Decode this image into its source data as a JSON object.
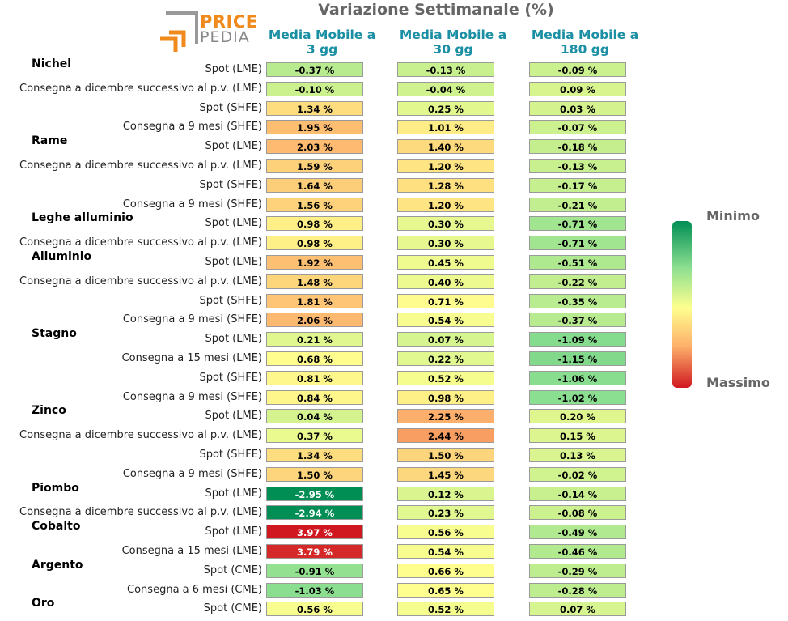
{
  "header": {
    "title": "Variazione Settimanale (%)"
  },
  "logo": {
    "top": "PRICE",
    "bottom": "PEDIA"
  },
  "legend": {
    "min_label": "Minimo",
    "max_label": "Massimo"
  },
  "chart_data": {
    "type": "table",
    "title": "Variazione Settimanale (%)",
    "columns": [
      "Media Mobile a 3 gg",
      "Media Mobile a 30 gg",
      "Media Mobile a 180 gg"
    ],
    "column_lines": [
      [
        "Media Mobile a",
        "3 gg"
      ],
      [
        "Media Mobile a",
        "30 gg"
      ],
      [
        "Media Mobile a",
        "180 gg"
      ]
    ],
    "groups": [
      {
        "name": "Nichel",
        "rows": [
          {
            "label": "Spot (LME)",
            "values": [
              -0.37,
              -0.13,
              -0.09
            ]
          },
          {
            "label": "Consegna a dicembre successivo al p.v. (LME)",
            "values": [
              -0.1,
              -0.04,
              0.09
            ]
          },
          {
            "label": "Spot (SHFE)",
            "values": [
              1.34,
              0.25,
              0.03
            ]
          },
          {
            "label": "Consegna a 9 mesi (SHFE)",
            "values": [
              1.95,
              1.01,
              -0.07
            ]
          }
        ]
      },
      {
        "name": "Rame",
        "rows": [
          {
            "label": "Spot (LME)",
            "values": [
              2.03,
              1.4,
              -0.18
            ]
          },
          {
            "label": "Consegna a dicembre successivo al p.v. (LME)",
            "values": [
              1.59,
              1.2,
              -0.13
            ]
          },
          {
            "label": "Spot (SHFE)",
            "values": [
              1.64,
              1.28,
              -0.17
            ]
          },
          {
            "label": "Consegna a 9 mesi (SHFE)",
            "values": [
              1.56,
              1.2,
              -0.21
            ]
          }
        ]
      },
      {
        "name": "Leghe alluminio",
        "rows": [
          {
            "label": "Spot (LME)",
            "values": [
              0.98,
              0.3,
              -0.71
            ]
          },
          {
            "label": "Consegna a dicembre successivo al p.v. (LME)",
            "values": [
              0.98,
              0.3,
              -0.71
            ]
          }
        ]
      },
      {
        "name": "Alluminio",
        "rows": [
          {
            "label": "Spot (LME)",
            "values": [
              1.92,
              0.45,
              -0.51
            ]
          },
          {
            "label": "Consegna a dicembre successivo al p.v. (LME)",
            "values": [
              1.48,
              0.4,
              -0.22
            ]
          },
          {
            "label": "Spot (SHFE)",
            "values": [
              1.81,
              0.71,
              -0.35
            ]
          },
          {
            "label": "Consegna a 9 mesi (SHFE)",
            "values": [
              2.06,
              0.54,
              -0.37
            ]
          }
        ]
      },
      {
        "name": "Stagno",
        "rows": [
          {
            "label": "Spot (LME)",
            "values": [
              0.21,
              0.07,
              -1.09
            ]
          },
          {
            "label": "Consegna a 15 mesi (LME)",
            "values": [
              0.68,
              0.22,
              -1.15
            ]
          },
          {
            "label": "Spot (SHFE)",
            "values": [
              0.81,
              0.52,
              -1.06
            ]
          },
          {
            "label": "Consegna a 9 mesi (SHFE)",
            "values": [
              0.84,
              0.98,
              -1.02
            ]
          }
        ]
      },
      {
        "name": "Zinco",
        "rows": [
          {
            "label": "Spot (LME)",
            "values": [
              0.04,
              2.25,
              0.2
            ]
          },
          {
            "label": "Consegna a dicembre successivo al p.v. (LME)",
            "values": [
              0.37,
              2.44,
              0.15
            ]
          },
          {
            "label": "Spot (SHFE)",
            "values": [
              1.34,
              1.5,
              0.13
            ]
          },
          {
            "label": "Consegna a 9 mesi (SHFE)",
            "values": [
              1.5,
              1.45,
              -0.02
            ]
          }
        ]
      },
      {
        "name": "Piombo",
        "rows": [
          {
            "label": "Spot (LME)",
            "values": [
              -2.95,
              0.12,
              -0.14
            ]
          },
          {
            "label": "Consegna a dicembre successivo al p.v. (LME)",
            "values": [
              -2.94,
              0.23,
              -0.08
            ]
          }
        ]
      },
      {
        "name": "Cobalto",
        "rows": [
          {
            "label": "Spot (LME)",
            "values": [
              3.97,
              0.56,
              -0.49
            ]
          },
          {
            "label": "Consegna a 15 mesi (LME)",
            "values": [
              3.79,
              0.54,
              -0.46
            ]
          }
        ]
      },
      {
        "name": "Argento",
        "rows": [
          {
            "label": "Spot (CME)",
            "values": [
              -0.91,
              0.66,
              -0.29
            ]
          },
          {
            "label": "Consegna a 6 mesi (CME)",
            "values": [
              -1.03,
              0.65,
              -0.28
            ]
          }
        ]
      },
      {
        "name": "Oro",
        "rows": [
          {
            "label": "Spot (CME)",
            "values": [
              0.56,
              0.52,
              0.07
            ]
          }
        ]
      }
    ]
  }
}
